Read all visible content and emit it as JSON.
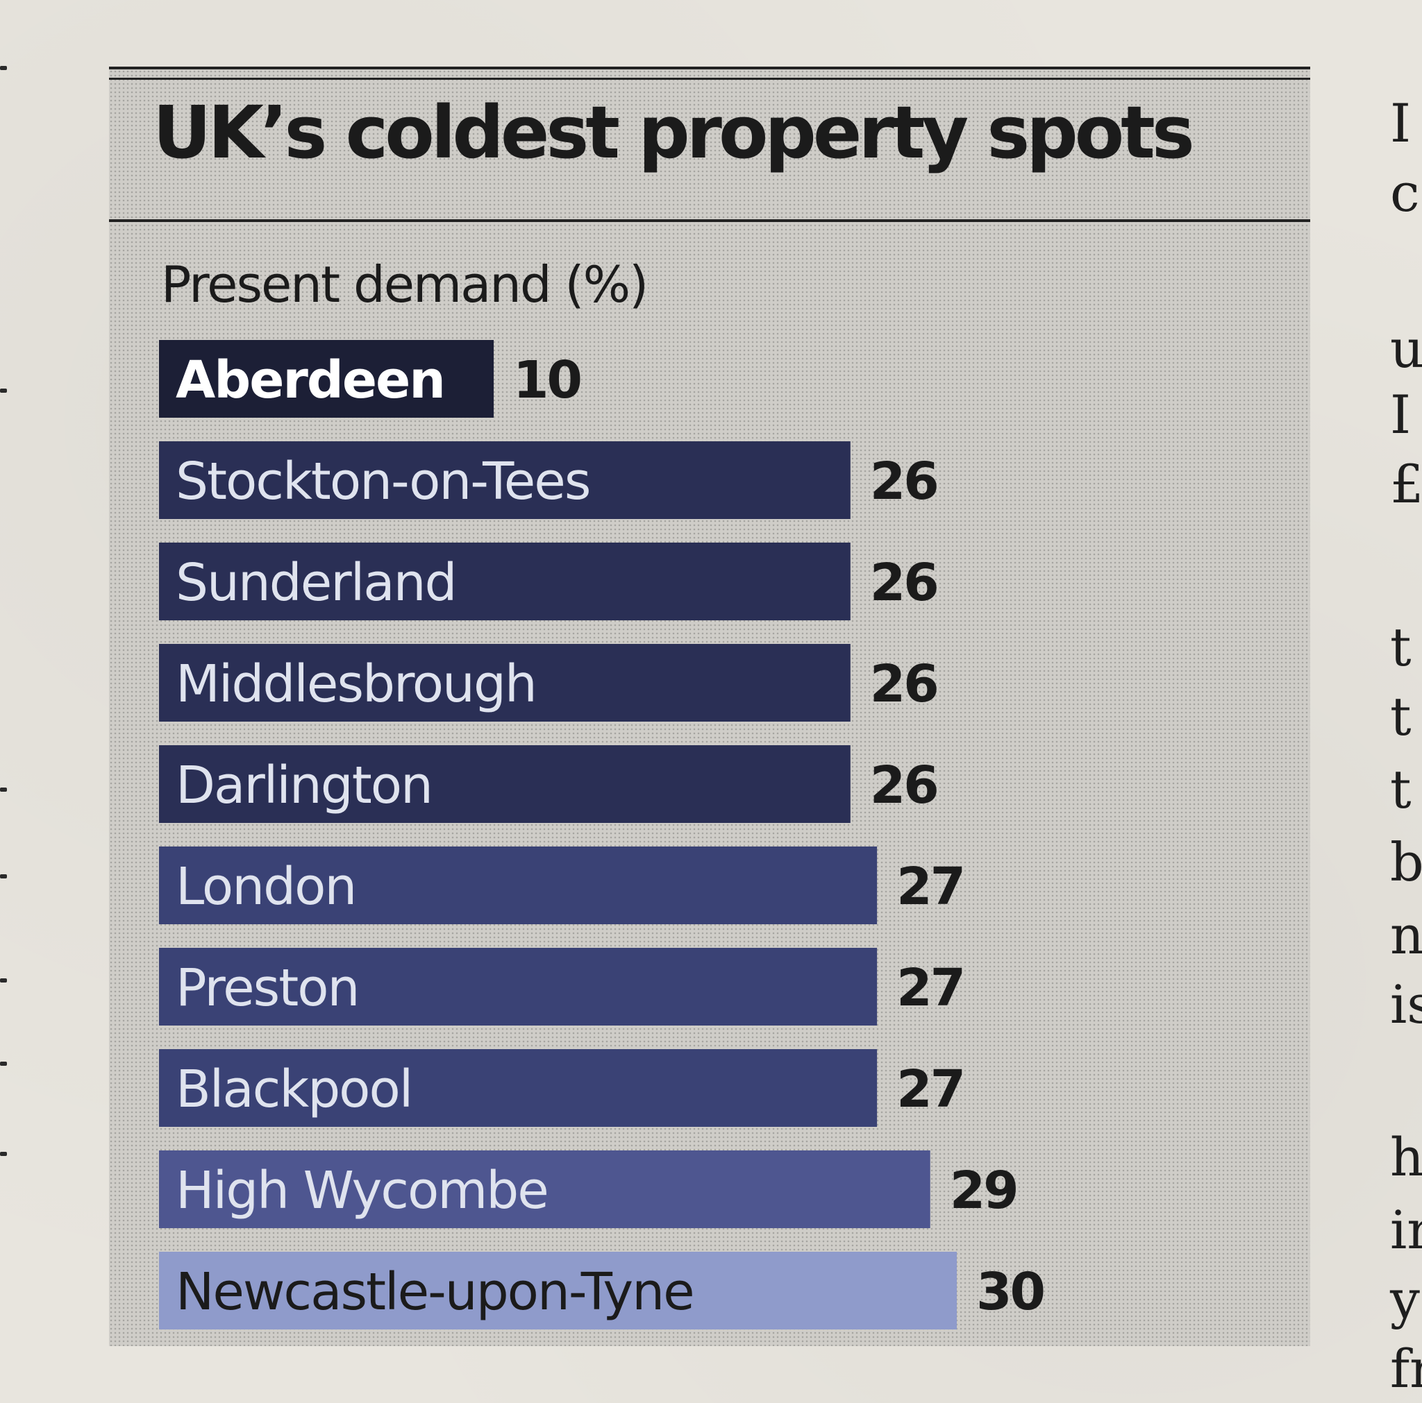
{
  "chart_data": {
    "type": "bar",
    "orientation": "horizontal",
    "title": "UK’s coldest property spots",
    "subtitle": "Present demand (%)",
    "categories": [
      "Aberdeen",
      "Stockton-on-Tees",
      "Sunderland",
      "Middlesbrough",
      "Darlington",
      "London",
      "Preston",
      "Blackpool",
      "High Wycombe",
      "Newcastle-upon-Tyne"
    ],
    "values": [
      10,
      26,
      26,
      26,
      26,
      27,
      27,
      27,
      29,
      30
    ],
    "colors": [
      "#1c1f36",
      "#2a2f55",
      "#2a2f55",
      "#2a2f55",
      "#2a2f55",
      "#3a4275",
      "#3a4275",
      "#3a4275",
      "#4e5690",
      "#8f9bcb"
    ],
    "label_colors": [
      "#ffffff",
      "#dfe3ee",
      "#dfe3ee",
      "#dfe3ee",
      "#dfe3ee",
      "#dfe3ee",
      "#dfe3ee",
      "#dfe3ee",
      "#dfe3ee",
      "#1b1b1b"
    ],
    "label_weights": [
      "bold",
      "normal",
      "normal",
      "normal",
      "normal",
      "normal",
      "normal",
      "normal",
      "normal",
      "normal"
    ],
    "legend": "none",
    "grid": false
  },
  "side_column": {
    "fragments": [
      "I",
      "c",
      "u",
      "I",
      "£",
      "t",
      "t",
      "t",
      "b",
      "n",
      "is",
      "h",
      "ir",
      "y",
      "fr"
    ]
  }
}
